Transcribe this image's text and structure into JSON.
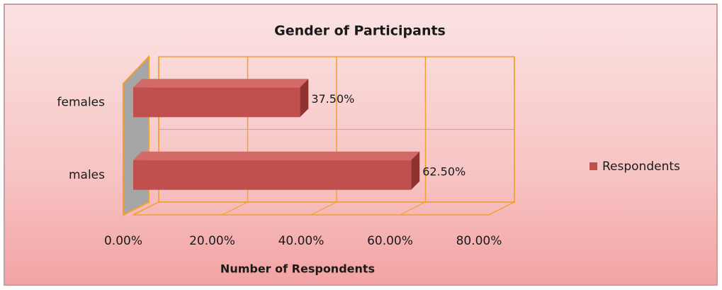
{
  "chart_data": {
    "type": "bar3d",
    "title": "Gender of Participants",
    "x_label": "Number of Respondents",
    "categories": [
      "females",
      "males"
    ],
    "series": [
      {
        "name": "Respondents",
        "color": "#c0504d",
        "values": [
          37.5,
          62.5
        ],
        "value_labels": [
          "37.50%",
          "62.50%"
        ]
      }
    ],
    "xlim": [
      0,
      80
    ],
    "xticks": [
      {
        "value": 0,
        "label": "0.00%"
      },
      {
        "value": 20,
        "label": "20.00%"
      },
      {
        "value": 40,
        "label": "40.00%"
      },
      {
        "value": 60,
        "label": "60.00%"
      },
      {
        "value": 80,
        "label": "80.00%"
      }
    ],
    "grid": true,
    "legend": "right"
  }
}
